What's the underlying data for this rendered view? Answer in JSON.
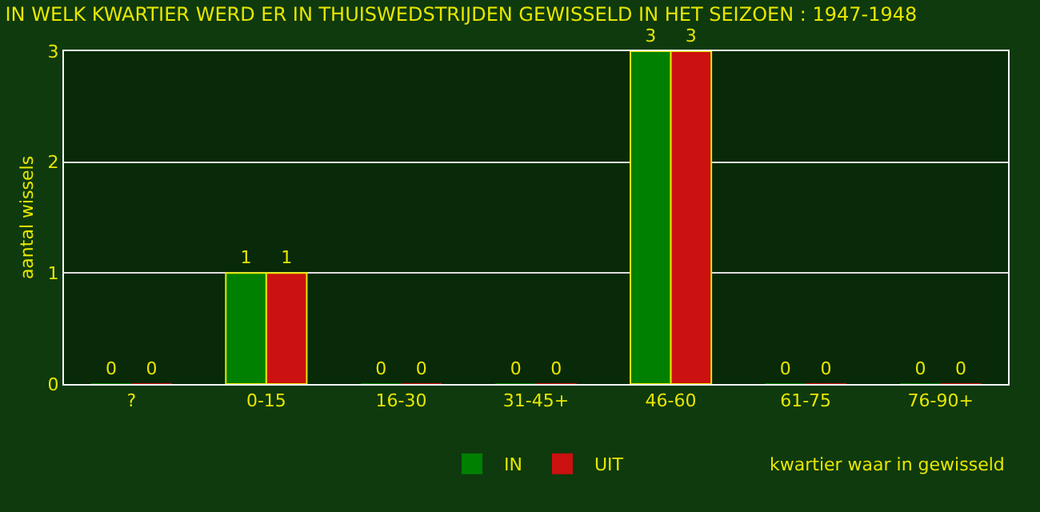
{
  "chart_data": {
    "type": "bar",
    "title": "IN WELK KWARTIER WERD ER IN THUISWEDSTRIJDEN GEWISSELD IN HET SEIZOEN : 1947-1948",
    "xlabel": "kwartier waar in gewisseld",
    "ylabel": "aantal wissels",
    "categories": [
      "?",
      "0-15",
      "16-30",
      "31-45+",
      "46-60",
      "61-75",
      "76-90+"
    ],
    "series": [
      {
        "name": "IN",
        "color": "#008000",
        "values": [
          0,
          1,
          0,
          0,
          3,
          0,
          0
        ]
      },
      {
        "name": "UIT",
        "color": "#cc1111",
        "values": [
          0,
          1,
          0,
          0,
          3,
          0,
          0
        ]
      }
    ],
    "ylim": [
      0,
      3
    ],
    "yticks": [
      0,
      1,
      2,
      3
    ],
    "grid": "y",
    "legend": "bottom",
    "data_labels": true
  }
}
